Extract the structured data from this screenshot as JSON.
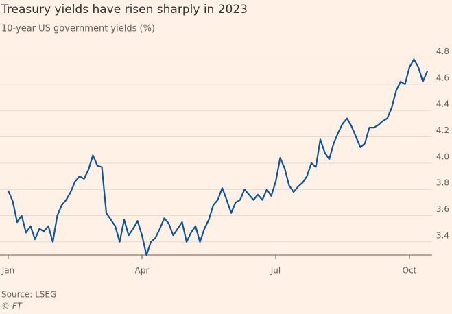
{
  "chart_data": {
    "type": "line",
    "title": "Treasury yields have risen sharply in 2023",
    "subtitle": "10-year US government yields (%)",
    "source": "Source: LSEG",
    "credit": "© FT",
    "categories": [
      "Jan",
      null,
      null,
      null,
      null,
      null,
      null,
      null,
      null,
      null,
      null,
      null,
      null,
      null,
      null,
      null,
      null,
      null,
      null,
      null,
      null,
      null,
      null,
      null,
      null,
      null,
      null,
      null,
      null,
      null,
      "Apr",
      null,
      null,
      null,
      null,
      null,
      null,
      null,
      null,
      null,
      null,
      null,
      null,
      null,
      null,
      null,
      null,
      null,
      null,
      null,
      null,
      null,
      null,
      null,
      null,
      null,
      null,
      null,
      null,
      null,
      "Jul",
      null,
      null,
      null,
      null,
      null,
      null,
      null,
      null,
      null,
      null,
      null,
      null,
      null,
      null,
      null,
      null,
      null,
      null,
      null,
      null,
      null,
      null,
      null,
      null,
      null,
      null,
      null,
      null,
      null,
      "Oct",
      null,
      null,
      null,
      null
    ],
    "series": [
      {
        "name": "10-year US government yields",
        "color": "#0f5499",
        "values": [
          3.79,
          3.71,
          3.55,
          3.6,
          3.47,
          3.52,
          3.42,
          3.5,
          3.48,
          3.52,
          3.4,
          3.6,
          3.68,
          3.72,
          3.78,
          3.86,
          3.9,
          3.88,
          3.95,
          4.06,
          3.98,
          3.97,
          3.62,
          3.57,
          3.52,
          3.4,
          3.57,
          3.45,
          3.5,
          3.56,
          3.45,
          3.3,
          3.4,
          3.43,
          3.5,
          3.58,
          3.54,
          3.45,
          3.5,
          3.55,
          3.4,
          3.47,
          3.52,
          3.4,
          3.5,
          3.57,
          3.68,
          3.72,
          3.81,
          3.72,
          3.62,
          3.7,
          3.72,
          3.8,
          3.76,
          3.72,
          3.76,
          3.72,
          3.8,
          3.75,
          3.86,
          4.04,
          3.96,
          3.83,
          3.78,
          3.82,
          3.85,
          3.9,
          4.0,
          3.97,
          4.18,
          4.08,
          4.03,
          4.15,
          4.23,
          4.3,
          4.34,
          4.28,
          4.2,
          4.12,
          4.15,
          4.27,
          4.27,
          4.29,
          4.32,
          4.34,
          4.42,
          4.55,
          4.62,
          4.6,
          4.73,
          4.79,
          4.73,
          4.62,
          4.7
        ]
      }
    ],
    "ylim": [
      3.3,
      4.85
    ],
    "yticks": [
      3.4,
      3.6,
      3.8,
      {
        "value": 4,
        "label": "4.0"
      },
      4.2,
      4.4,
      4.6,
      4.8
    ],
    "grid": true
  }
}
